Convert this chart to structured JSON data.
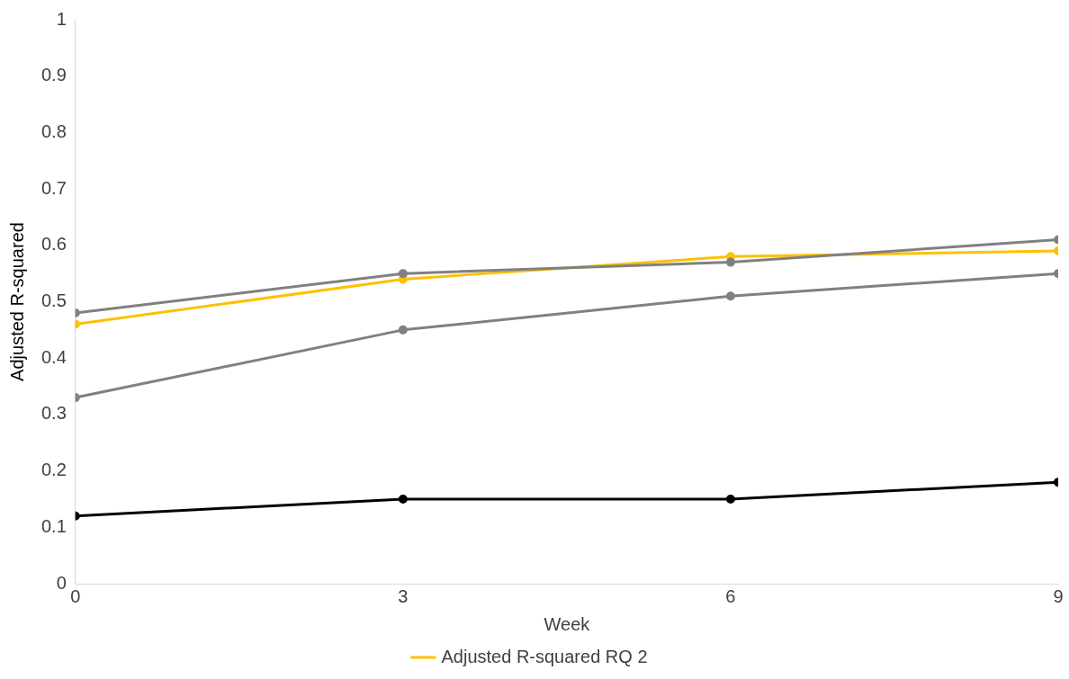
{
  "chart_data": {
    "type": "line",
    "xlabel": "Week",
    "ylabel": "Adjusted R-squared",
    "x": [
      0,
      3,
      6,
      9
    ],
    "xlim": [
      0,
      9
    ],
    "xticks": [
      0,
      3,
      6,
      9
    ],
    "ylim": [
      0,
      1
    ],
    "yticks": [
      0,
      0.1,
      0.2,
      0.3,
      0.4,
      0.5,
      0.6,
      0.7,
      0.8,
      0.9,
      1
    ],
    "grid": false,
    "legend": "bottom",
    "marker": "circle",
    "line_style": "solid",
    "series": [
      {
        "color": "#808080",
        "values": [
          0.48,
          0.55,
          0.57,
          0.61
        ]
      },
      {
        "name": "Adjusted R-squared RQ 2",
        "color": "#ffc000",
        "values": [
          0.46,
          0.54,
          0.58,
          0.59
        ]
      },
      {
        "color": "#808080",
        "values": [
          0.33,
          0.45,
          0.51,
          0.55
        ]
      },
      {
        "color": "#000000",
        "values": [
          0.12,
          0.15,
          0.15,
          0.18
        ]
      }
    ]
  }
}
